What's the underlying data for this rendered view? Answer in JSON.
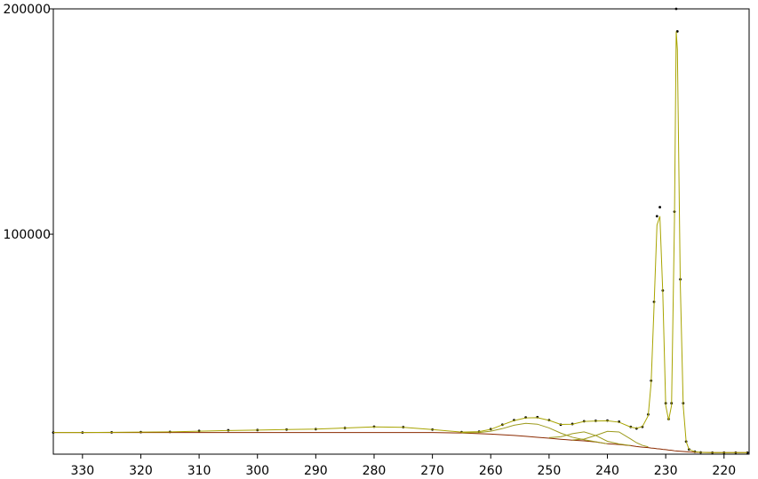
{
  "chart_data": {
    "type": "line",
    "x": [
      335,
      330,
      325,
      320,
      315,
      310,
      305,
      300,
      295,
      290,
      285,
      280,
      275,
      270,
      265,
      262,
      260,
      258,
      256,
      254,
      252,
      250,
      248,
      246,
      244,
      242,
      240,
      238,
      236,
      235,
      234,
      233,
      232.5,
      232,
      231.5,
      231,
      230.5,
      230,
      229.5,
      229,
      228.5,
      228.2,
      228,
      227.5,
      227,
      226.5,
      226,
      225,
      224,
      222,
      220,
      218,
      216
    ],
    "series": [
      {
        "color": "#000000",
        "mode": "markers",
        "values": [
          12000,
          12000,
          12100,
          12200,
          12300,
          12700,
          13000,
          13100,
          13300,
          13500,
          14000,
          14600,
          14400,
          13300,
          12200,
          12400,
          13500,
          15500,
          17500,
          18700,
          18800,
          17500,
          15500,
          15800,
          17000,
          17200,
          17300,
          16800,
          14500,
          13800,
          14500,
          20000,
          35000,
          70000,
          108000,
          112000,
          75000,
          25000,
          18000,
          25000,
          110000,
          200000,
          190000,
          80000,
          25000,
          8000,
          4500,
          3500,
          3200,
          3100,
          3100,
          3100,
          3100
        ]
      },
      {
        "color": "#8b2a00",
        "mode": "line",
        "values": [
          12000,
          12000,
          12000,
          12000,
          12000,
          12000,
          12000,
          12000,
          12000,
          12000,
          12000,
          12000,
          12000,
          12000,
          11800,
          11500,
          11300,
          11000,
          10700,
          10300,
          9900,
          9500,
          9000,
          8600,
          8300,
          7800,
          7000,
          6700,
          6200,
          5800,
          5500,
          5300,
          5100,
          5000,
          4800,
          4700,
          4500,
          4400,
          4200,
          4100,
          3900,
          3850,
          3800,
          3700,
          3600,
          3500,
          3400,
          3300,
          3200,
          3100,
          3100,
          3100,
          3100
        ]
      },
      {
        "color": "#9c9a1c",
        "mode": "line",
        "values": [
          null,
          null,
          null,
          null,
          null,
          null,
          null,
          null,
          null,
          null,
          null,
          null,
          null,
          null,
          11900,
          12000,
          12600,
          13750,
          15230,
          16100,
          15700,
          14030,
          11750,
          9900,
          8780,
          7930,
          7000,
          null,
          null,
          null,
          null,
          null,
          null,
          null,
          null,
          null,
          null,
          null,
          null,
          null,
          null,
          null,
          null,
          null,
          null,
          null,
          null,
          null,
          null,
          null,
          null,
          null,
          null
        ]
      },
      {
        "color": "#9c9a1c",
        "mode": "line",
        "values": [
          null,
          null,
          null,
          null,
          null,
          null,
          null,
          null,
          null,
          null,
          null,
          null,
          null,
          null,
          null,
          null,
          null,
          null,
          null,
          null,
          null,
          9720,
          10110,
          11500,
          12300,
          10700,
          8110,
          6920,
          6220,
          null,
          null,
          null,
          null,
          null,
          null,
          null,
          null,
          null,
          null,
          null,
          null,
          null,
          null,
          null,
          null,
          null,
          null,
          null,
          null,
          null,
          null,
          null,
          null
        ]
      },
      {
        "color": "#9c9a1c",
        "mode": "line",
        "values": [
          null,
          null,
          null,
          null,
          null,
          null,
          null,
          null,
          null,
          null,
          null,
          null,
          null,
          null,
          null,
          null,
          null,
          null,
          null,
          null,
          null,
          null,
          null,
          8720,
          9110,
          10720,
          12540,
          12240,
          9120,
          7470,
          6310,
          5640,
          null,
          null,
          null,
          null,
          null,
          null,
          null,
          null,
          null,
          null,
          null,
          null,
          null,
          null,
          null,
          null,
          null,
          null,
          null,
          null,
          null
        ]
      },
      {
        "color": "#a8a400",
        "mode": "line",
        "values": [
          12000,
          12000,
          12100,
          12200,
          12300,
          12600,
          12900,
          13100,
          13300,
          13500,
          14000,
          14500,
          14300,
          13300,
          12200,
          12400,
          13400,
          15400,
          17300,
          18500,
          18600,
          17400,
          15600,
          15700,
          16900,
          17100,
          17200,
          16600,
          14400,
          13900,
          14600,
          19500,
          34000,
          68000,
          104000,
          108000,
          74000,
          24000,
          17500,
          24000,
          106000,
          190000,
          182000,
          78000,
          24000,
          8000,
          4500,
          3500,
          3200,
          3100,
          3100,
          3100,
          3100
        ]
      }
    ],
    "xlim": [
      335,
      215.7
    ],
    "xticks": [
      330,
      320,
      310,
      300,
      290,
      280,
      270,
      260,
      250,
      240,
      230,
      220
    ],
    "ylim": [
      2400,
      200000
    ],
    "yticks": [
      100000,
      200000
    ]
  }
}
